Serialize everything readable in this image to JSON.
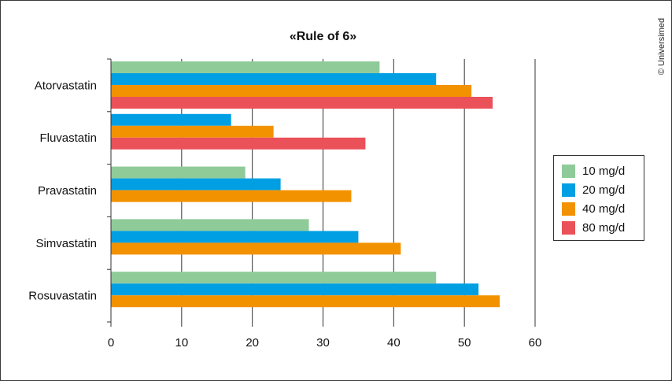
{
  "chart_data": {
    "type": "bar",
    "orientation": "horizontal",
    "title": "«Rule of 6»",
    "categories": [
      "Atorvastatin",
      "Fluvastatin",
      "Pravastatin",
      "Simvastatin",
      "Rosuvastatin"
    ],
    "series": [
      {
        "name": "10 mg/d",
        "color": "#8fcb99",
        "values": [
          38,
          null,
          19,
          28,
          46
        ]
      },
      {
        "name": "20 mg/d",
        "color": "#009fe3",
        "values": [
          46,
          17,
          24,
          35,
          52
        ]
      },
      {
        "name": "40 mg/d",
        "color": "#f39200",
        "values": [
          51,
          23,
          34,
          41,
          55
        ]
      },
      {
        "name": "80 mg/d",
        "color": "#ea5158",
        "values": [
          54,
          36,
          null,
          null,
          null
        ]
      }
    ],
    "xlim": [
      0,
      60
    ],
    "xticks": [
      0,
      10,
      20,
      30,
      40,
      50,
      60
    ],
    "grid": "vertical",
    "legend_position": "right"
  },
  "copyright": "© Universimed"
}
